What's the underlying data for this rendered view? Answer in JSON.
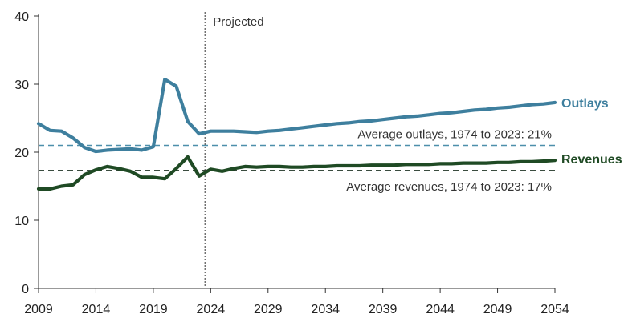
{
  "chart_data": {
    "type": "line",
    "xlim": [
      2009,
      2054
    ],
    "ylim": [
      0,
      40
    ],
    "x_ticks": [
      "2009",
      "2014",
      "2019",
      "2024",
      "2029",
      "2034",
      "2039",
      "2044",
      "2049",
      "2054"
    ],
    "y_ticks": [
      "0",
      "10",
      "20",
      "30",
      "40"
    ],
    "grid": false,
    "projected": {
      "label": "Projected",
      "x": 2023.5
    },
    "series": [
      {
        "name": "Outlays",
        "color": "#3e7f9e",
        "x": [
          2009,
          2010,
          2011,
          2012,
          2013,
          2014,
          2015,
          2016,
          2017,
          2018,
          2019,
          2020,
          2021,
          2022,
          2023,
          2024,
          2025,
          2026,
          2027,
          2028,
          2029,
          2030,
          2031,
          2032,
          2033,
          2034,
          2035,
          2036,
          2037,
          2038,
          2039,
          2040,
          2041,
          2042,
          2043,
          2044,
          2045,
          2046,
          2047,
          2048,
          2049,
          2050,
          2051,
          2052,
          2053,
          2054
        ],
        "values": [
          24.2,
          23.2,
          23.1,
          22.1,
          20.7,
          20.1,
          20.3,
          20.4,
          20.5,
          20.3,
          20.8,
          30.7,
          29.7,
          24.5,
          22.7,
          23.1,
          23.1,
          23.1,
          23.0,
          22.9,
          23.1,
          23.2,
          23.4,
          23.6,
          23.8,
          24.0,
          24.2,
          24.3,
          24.5,
          24.6,
          24.8,
          25.0,
          25.2,
          25.3,
          25.5,
          25.7,
          25.8,
          26.0,
          26.2,
          26.3,
          26.5,
          26.6,
          26.8,
          27.0,
          27.1,
          27.3
        ]
      },
      {
        "name": "Revenues",
        "color": "#1f4a24",
        "x": [
          2009,
          2010,
          2011,
          2012,
          2013,
          2014,
          2015,
          2016,
          2017,
          2018,
          2019,
          2020,
          2021,
          2022,
          2023,
          2024,
          2025,
          2026,
          2027,
          2028,
          2029,
          2030,
          2031,
          2032,
          2033,
          2034,
          2035,
          2036,
          2037,
          2038,
          2039,
          2040,
          2041,
          2042,
          2043,
          2044,
          2045,
          2046,
          2047,
          2048,
          2049,
          2050,
          2051,
          2052,
          2053,
          2054
        ],
        "values": [
          14.6,
          14.6,
          15.0,
          15.2,
          16.7,
          17.4,
          17.9,
          17.6,
          17.2,
          16.3,
          16.3,
          16.1,
          17.6,
          19.3,
          16.5,
          17.5,
          17.2,
          17.6,
          17.9,
          17.8,
          17.9,
          17.9,
          17.8,
          17.8,
          17.9,
          17.9,
          18.0,
          18.0,
          18.0,
          18.1,
          18.1,
          18.1,
          18.2,
          18.2,
          18.2,
          18.3,
          18.3,
          18.4,
          18.4,
          18.4,
          18.5,
          18.5,
          18.6,
          18.6,
          18.7,
          18.8
        ]
      }
    ],
    "averages": [
      {
        "label": "Average outlays, 1974 to 2023: 21%",
        "value": 21,
        "color": "#4d8fab"
      },
      {
        "label": "Average revenues, 1974 to 2023: 17%",
        "value": 17.3,
        "color": "#1f3324"
      }
    ]
  }
}
